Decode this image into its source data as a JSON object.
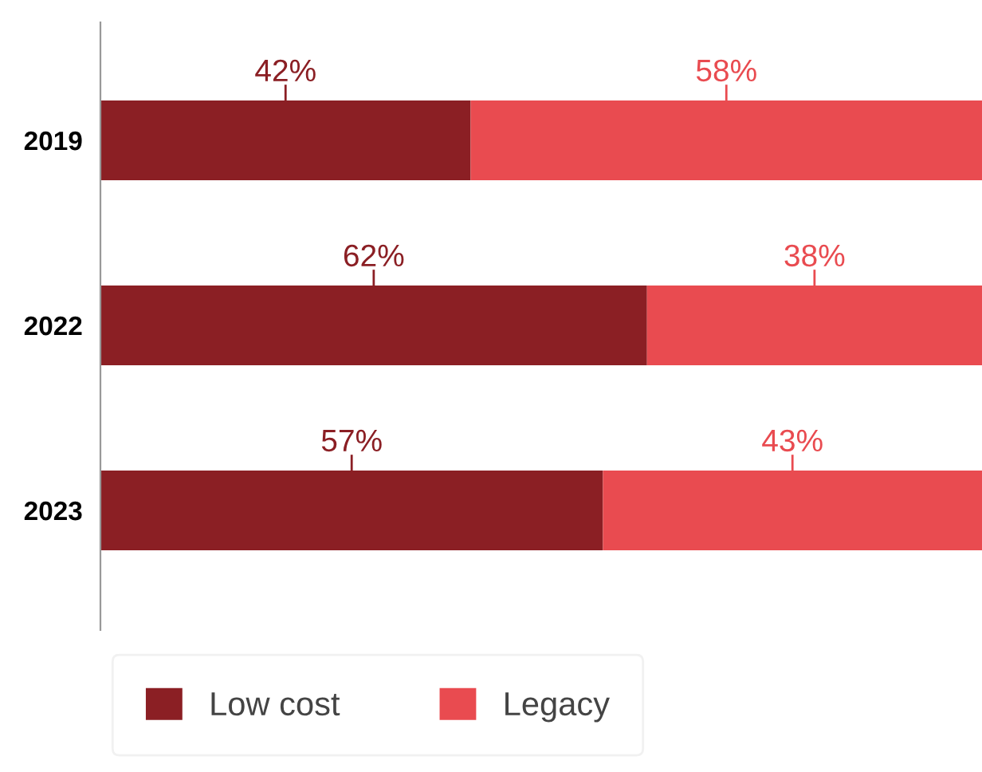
{
  "chart_data": {
    "type": "bar",
    "orientation": "horizontal",
    "stacked": true,
    "categories": [
      "2019",
      "2022",
      "2023"
    ],
    "xlim": [
      0,
      100
    ],
    "legend": "bottom",
    "tick_labels": "y",
    "grid": false,
    "series": [
      {
        "name": "Low cost",
        "color": "#8b1f24",
        "values": [
          42,
          62,
          57
        ],
        "value_labels": [
          "42%",
          "62%",
          "57%"
        ]
      },
      {
        "name": "Legacy",
        "color": "#e94b50",
        "values": [
          58,
          38,
          43
        ],
        "value_labels": [
          "58%",
          "38%",
          "43%"
        ]
      }
    ]
  }
}
